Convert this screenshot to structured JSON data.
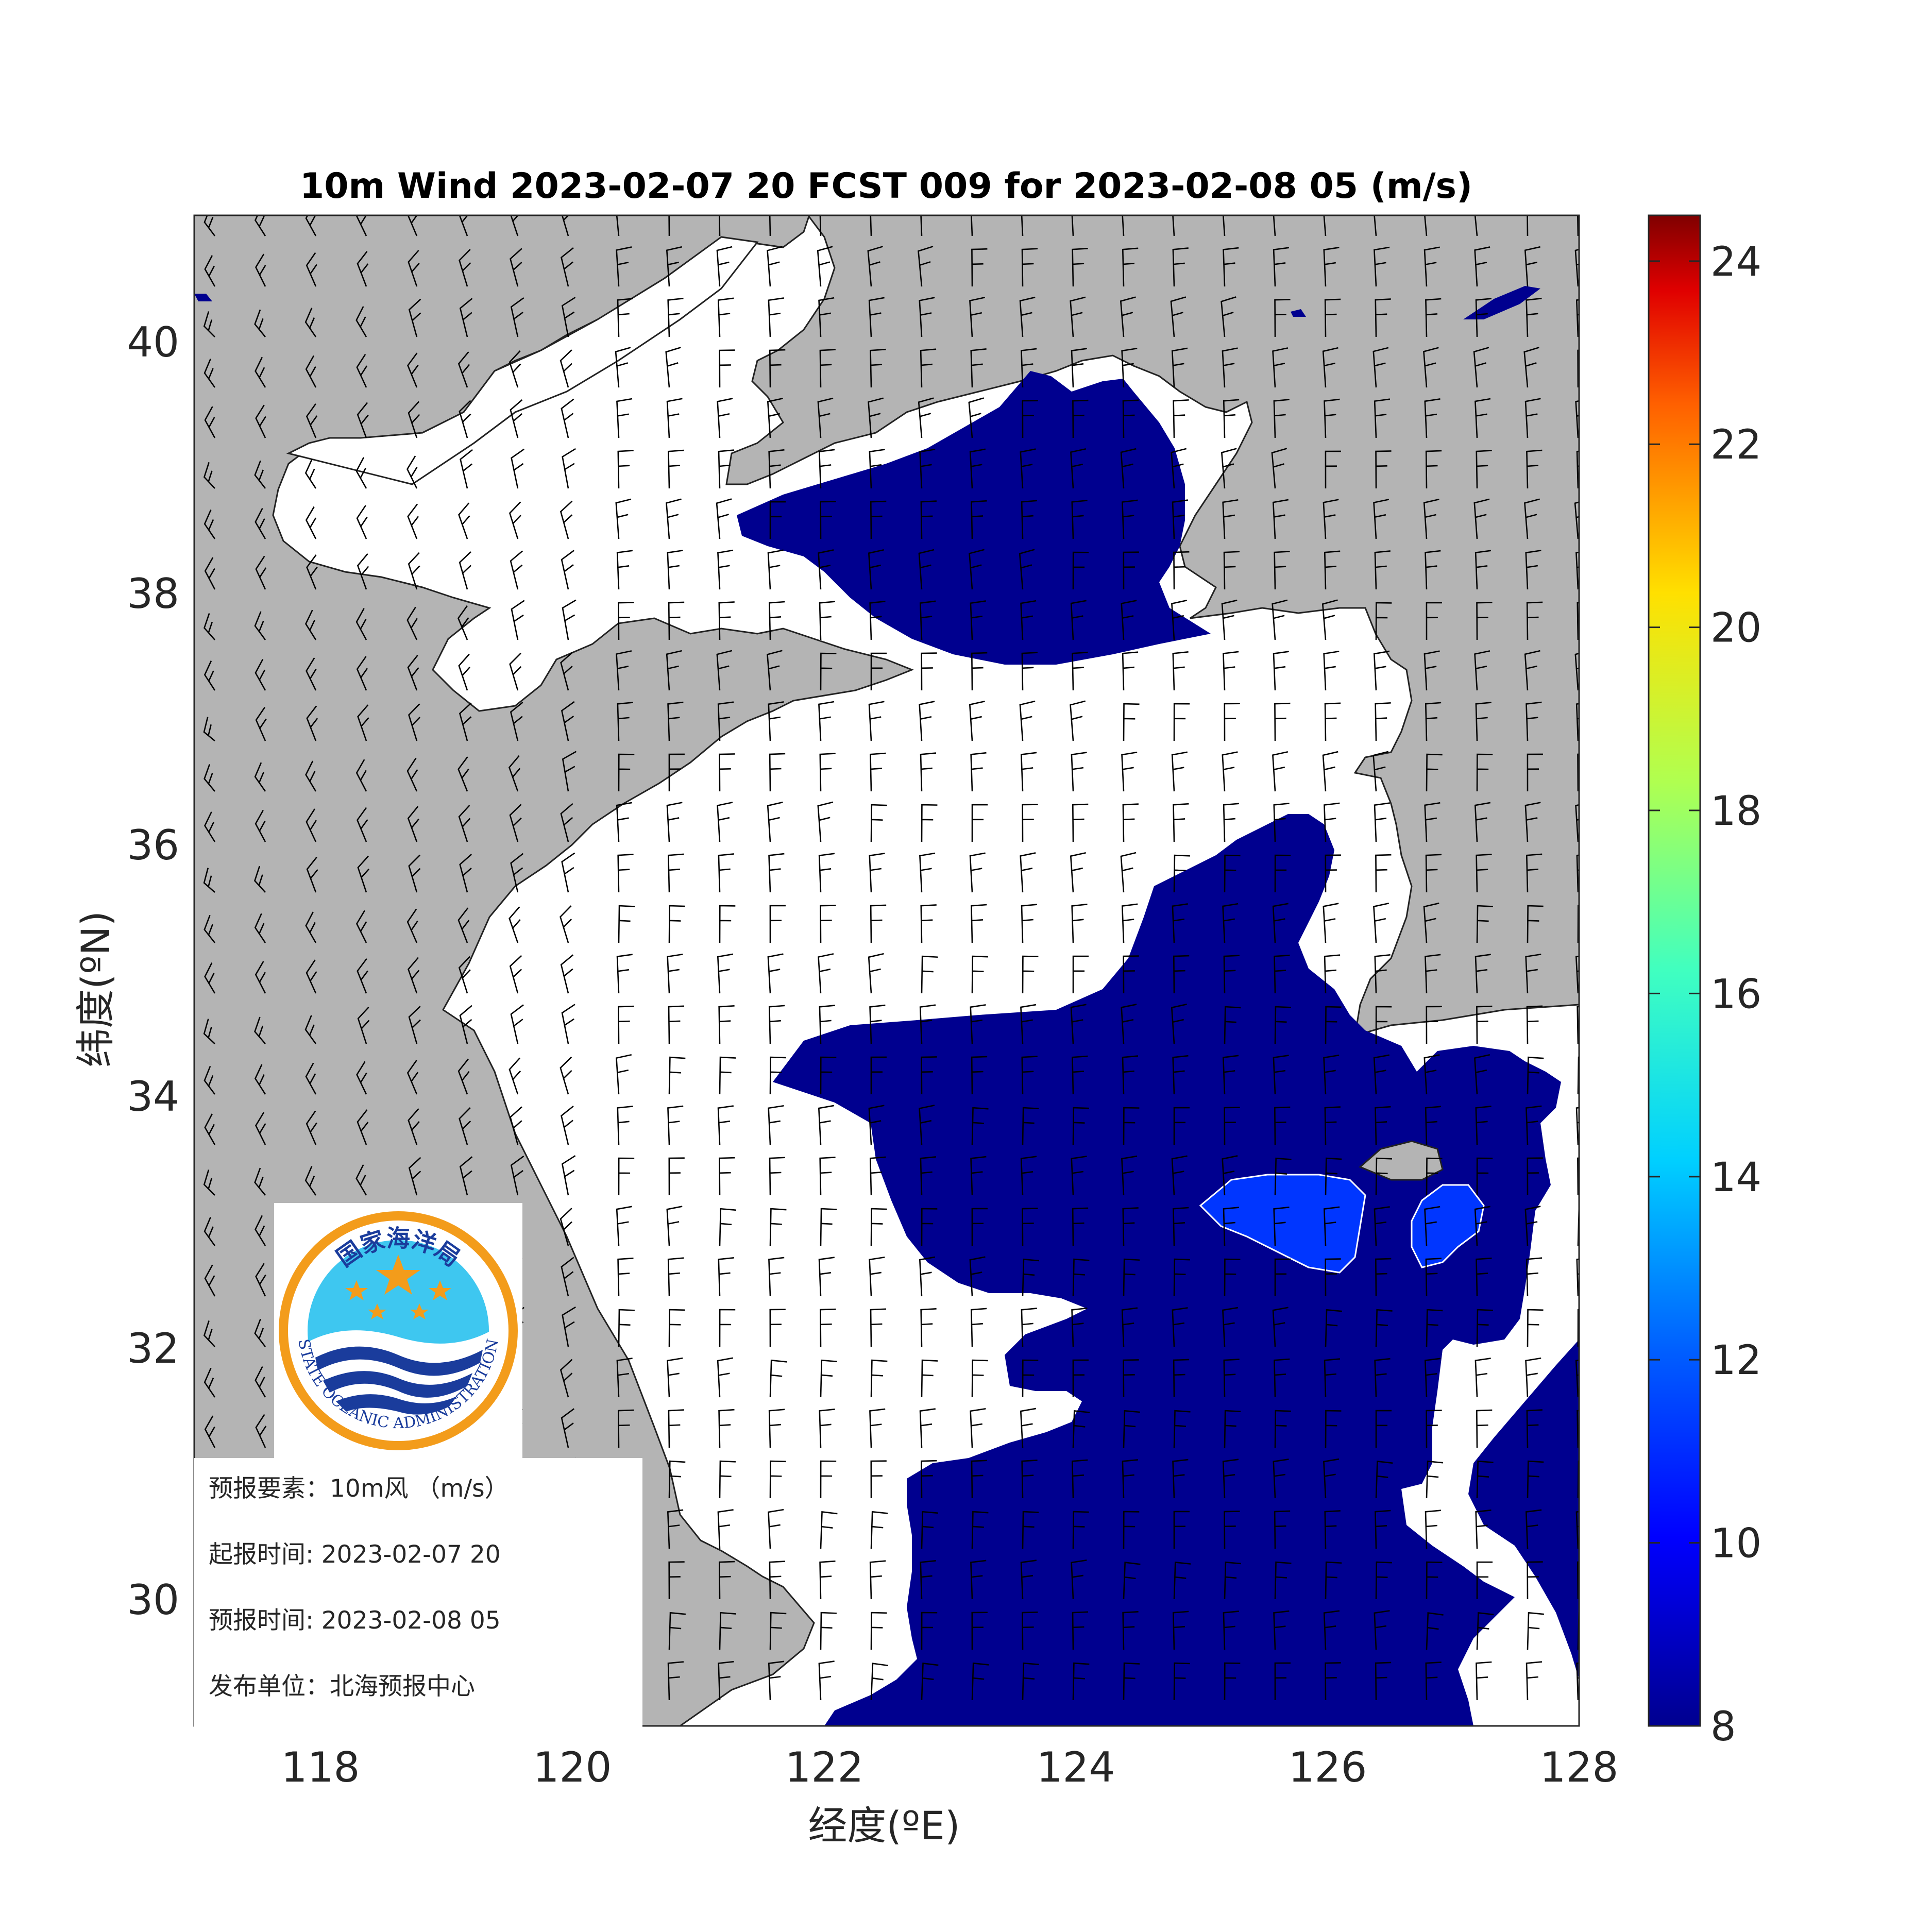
{
  "title": "10m Wind 2023-02-07 20 FCST 009 for 2023-02-08 05 (m/s)",
  "xaxis": {
    "label": "经度(ºE)",
    "ticks": [
      "118",
      "120",
      "122",
      "124",
      "126",
      "128"
    ],
    "range": [
      117,
      128
    ]
  },
  "yaxis": {
    "label": "纬度(ºN)",
    "ticks": [
      "30",
      "32",
      "34",
      "36",
      "38",
      "40"
    ],
    "range": [
      29,
      41
    ]
  },
  "colorbar": {
    "ticks": [
      "8",
      "10",
      "12",
      "14",
      "16",
      "18",
      "20",
      "22",
      "24"
    ],
    "range": [
      8,
      24.5
    ]
  },
  "info": {
    "element": "预报要素：10m风 （m/s）",
    "init_time": "起报时间: 2023-02-07 20",
    "valid_time": "预报时间: 2023-02-08 05",
    "issuer": "发布单位：北海预报中心"
  },
  "logo": {
    "text_cn": "国家海洋局",
    "text_en": "STATE OCEANIC ADMINISTRATION"
  },
  "colors": {
    "land": "#b4b4b4",
    "sea_below": "#ffffff",
    "band_8_10": "#00008f",
    "band_10_12": "#0036ff"
  }
}
